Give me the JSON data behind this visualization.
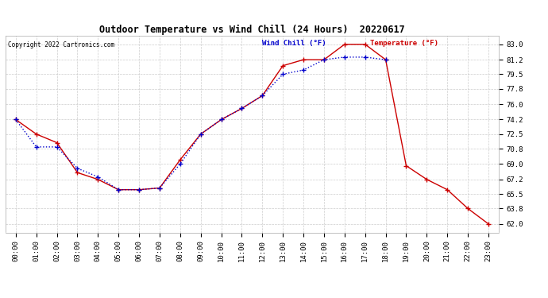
{
  "title": "Outdoor Temperature vs Wind Chill (24 Hours)  20220617",
  "copyright": "Copyright 2022 Cartronics.com",
  "legend_wind_chill": "Wind Chill (°F)",
  "legend_temperature": "Temperature (°F)",
  "hours": [
    0,
    1,
    2,
    3,
    4,
    5,
    6,
    7,
    8,
    9,
    10,
    11,
    12,
    13,
    14,
    15,
    16,
    17,
    18,
    19,
    20,
    21,
    22,
    23
  ],
  "temperature": [
    74.2,
    72.5,
    71.5,
    68.0,
    67.2,
    66.0,
    66.0,
    66.2,
    69.5,
    72.5,
    74.2,
    75.5,
    77.0,
    80.5,
    81.2,
    81.2,
    83.0,
    83.0,
    81.2,
    68.8,
    67.2,
    66.0,
    63.8,
    62.0
  ],
  "wind_chill": [
    74.2,
    71.0,
    71.0,
    68.5,
    67.5,
    66.0,
    66.0,
    66.2,
    69.0,
    72.5,
    74.2,
    75.5,
    77.0,
    79.5,
    80.0,
    81.2,
    81.5,
    81.5,
    81.2,
    null,
    null,
    null,
    null,
    null
  ],
  "ylim_min": 61.0,
  "ylim_max": 84.0,
  "yticks": [
    62.0,
    63.8,
    65.5,
    67.2,
    69.0,
    70.8,
    72.5,
    74.2,
    76.0,
    77.8,
    79.5,
    81.2,
    83.0
  ],
  "ytick_labels": [
    "62.0",
    "63.8",
    "65.5",
    "67.2",
    "69.0",
    "70.8",
    "72.5",
    "74.2",
    "76.0",
    "77.8",
    "79.5",
    "81.2",
    "83.0"
  ],
  "bg_color": "#ffffff",
  "grid_color": "#cccccc",
  "temp_color": "#cc0000",
  "wind_chill_color": "#0000cc",
  "title_color": "#000000",
  "copyright_color": "#000000",
  "legend_wind_chill_color": "#0000cc",
  "legend_temp_color": "#cc0000"
}
